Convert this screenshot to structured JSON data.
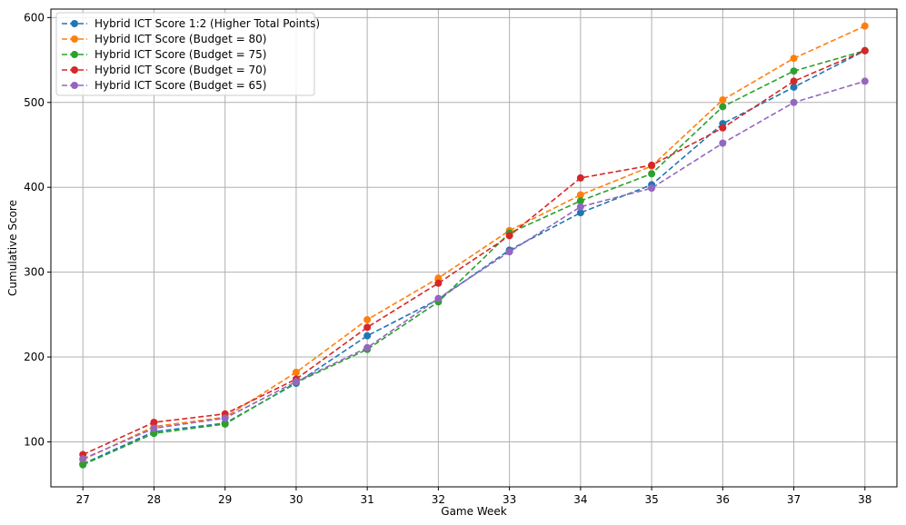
{
  "chart_data": {
    "type": "line",
    "title": "",
    "xlabel": "Game Week",
    "ylabel": "Cumulative Score",
    "x": [
      27,
      28,
      29,
      30,
      31,
      32,
      33,
      34,
      35,
      36,
      37,
      38
    ],
    "xlim": [
      26.55,
      38.45
    ],
    "ylim": [
      47,
      610
    ],
    "yticks": [
      100,
      200,
      300,
      400,
      500,
      600
    ],
    "grid": true,
    "legend_position": "top-left",
    "series": [
      {
        "name": "Hybrid ICT Score 1:2 (Higher Total Points)",
        "color": "#1f77b4",
        "values": [
          74,
          112,
          122,
          169,
          225,
          268,
          326,
          370,
          403,
          475,
          518,
          561
        ]
      },
      {
        "name": "Hybrid ICT Score (Budget = 80)",
        "color": "#ff7f0e",
        "values": [
          79,
          118,
          129,
          182,
          244,
          293,
          349,
          391,
          425,
          503,
          552,
          590
        ]
      },
      {
        "name": "Hybrid ICT Score (Budget = 75)",
        "color": "#2ca02c",
        "values": [
          73,
          110,
          121,
          170,
          209,
          265,
          346,
          384,
          416,
          495,
          537,
          561
        ]
      },
      {
        "name": "Hybrid ICT Score (Budget = 70)",
        "color": "#d62728",
        "values": [
          85,
          123,
          133,
          174,
          235,
          287,
          343,
          411,
          426,
          470,
          525,
          561
        ]
      },
      {
        "name": "Hybrid ICT Score (Budget = 65)",
        "color": "#9467bd",
        "values": [
          80,
          116,
          128,
          171,
          211,
          269,
          324,
          377,
          399,
          452,
          500,
          525
        ]
      }
    ]
  }
}
